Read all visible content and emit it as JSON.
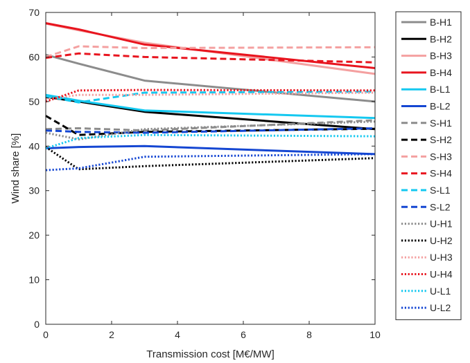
{
  "chart_data": {
    "type": "line",
    "xlabel": "Transmission cost [M€/MW]",
    "ylabel": "Wind share [%]",
    "xlim": [
      0,
      10
    ],
    "ylim": [
      0,
      70
    ],
    "xticks": [
      0,
      2,
      4,
      6,
      8,
      10
    ],
    "yticks": [
      0,
      10,
      20,
      30,
      40,
      50,
      60,
      70
    ],
    "grid": false,
    "legend_position": "right-outside",
    "x": [
      0,
      1,
      3,
      10
    ],
    "series": [
      {
        "name": "B-H1",
        "color": "#8c8c8c",
        "style": "solid",
        "values": [
          60.5,
          58.5,
          54.7,
          50.0
        ]
      },
      {
        "name": "B-H2",
        "color": "#000000",
        "style": "solid",
        "values": [
          51.0,
          50.0,
          47.7,
          43.8
        ]
      },
      {
        "name": "B-H3",
        "color": "#f4a0a0",
        "style": "solid",
        "values": [
          67.5,
          66.0,
          63.2,
          56.2
        ]
      },
      {
        "name": "B-H4",
        "color": "#e8141e",
        "style": "solid",
        "values": [
          67.6,
          66.2,
          62.8,
          57.5
        ]
      },
      {
        "name": "B-L1",
        "color": "#14c8f0",
        "style": "solid",
        "values": [
          51.5,
          50.2,
          48.0,
          46.3
        ]
      },
      {
        "name": "B-L2",
        "color": "#1446d2",
        "style": "solid",
        "values": [
          39.5,
          39.8,
          40.0,
          38.2
        ]
      },
      {
        "name": "S-H1",
        "color": "#8c8c8c",
        "style": "dashed",
        "values": [
          43.8,
          44.0,
          43.5,
          45.8
        ]
      },
      {
        "name": "S-H2",
        "color": "#000000",
        "style": "dashed",
        "values": [
          46.8,
          42.5,
          43.2,
          43.9
        ]
      },
      {
        "name": "S-H3",
        "color": "#f4a0a0",
        "style": "dashed",
        "values": [
          60.0,
          62.4,
          62.0,
          62.2
        ]
      },
      {
        "name": "S-H4",
        "color": "#e8141e",
        "style": "dashed",
        "values": [
          59.8,
          60.8,
          60.0,
          58.8
        ]
      },
      {
        "name": "S-L1",
        "color": "#14c8f0",
        "style": "dashed",
        "values": [
          51.2,
          49.8,
          52.0,
          52.2
        ]
      },
      {
        "name": "S-L2",
        "color": "#1446d2",
        "style": "dashed",
        "values": [
          43.5,
          43.2,
          43.0,
          44.0
        ]
      },
      {
        "name": "U-H1",
        "color": "#8c8c8c",
        "style": "dotted",
        "values": [
          43.0,
          41.5,
          43.8,
          45.5
        ]
      },
      {
        "name": "U-H2",
        "color": "#000000",
        "style": "dotted",
        "values": [
          39.8,
          34.8,
          35.5,
          37.3
        ]
      },
      {
        "name": "U-H3",
        "color": "#f4a0a0",
        "style": "dotted",
        "values": [
          50.5,
          51.5,
          51.5,
          52.0
        ]
      },
      {
        "name": "U-H4",
        "color": "#e8141e",
        "style": "dotted",
        "values": [
          50.0,
          52.5,
          52.6,
          52.5
        ]
      },
      {
        "name": "U-L1",
        "color": "#14c8f0",
        "style": "dotted",
        "values": [
          39.5,
          41.8,
          42.5,
          42.2
        ]
      },
      {
        "name": "U-L2",
        "color": "#1446d2",
        "style": "dotted",
        "values": [
          34.6,
          35.0,
          37.6,
          38.2
        ]
      }
    ]
  }
}
